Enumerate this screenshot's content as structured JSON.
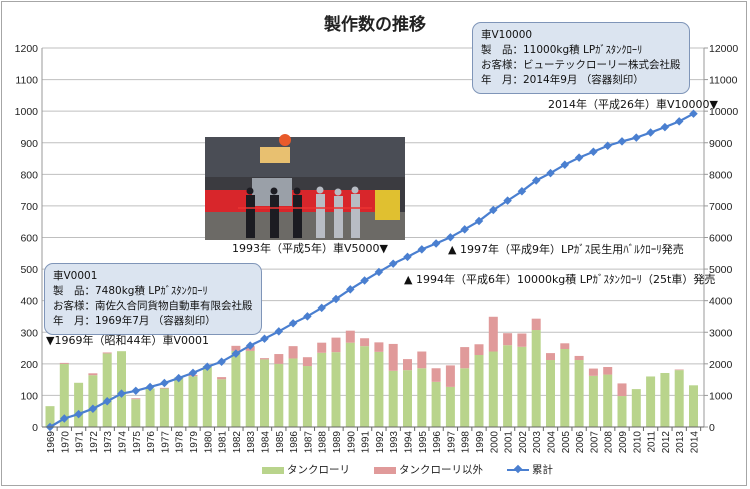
{
  "chart_data": {
    "type": "bar",
    "title": "製作数の推移",
    "categories": [
      "1969",
      "1970",
      "1971",
      "1972",
      "1973",
      "1974",
      "1975",
      "1976",
      "1977",
      "1978",
      "1979",
      "1980",
      "1981",
      "1982",
      "1983",
      "1984",
      "1985",
      "1986",
      "1987",
      "1988",
      "1989",
      "1990",
      "1991",
      "1992",
      "1993",
      "1994",
      "1995",
      "1996",
      "1997",
      "1998",
      "1999",
      "2000",
      "2001",
      "2002",
      "2003",
      "2004",
      "2005",
      "2006",
      "2007",
      "2008",
      "2009",
      "2010",
      "2011",
      "2012",
      "2013",
      "2014"
    ],
    "series": [
      {
        "name": "タンクローリ",
        "type": "stacked-bar",
        "axis": "left",
        "color": "#b9d48c",
        "values": [
          66,
          200,
          140,
          164,
          233,
          240,
          88,
          122,
          122,
          157,
          161,
          193,
          151,
          241,
          241,
          214,
          200,
          217,
          193,
          235,
          237,
          267,
          256,
          238,
          178,
          180,
          186,
          143,
          127,
          186,
          228,
          239,
          259,
          254,
          307,
          212,
          247,
          212,
          162,
          166,
          98,
          120,
          160,
          171,
          180,
          132
        ]
      },
      {
        "name": "タンクローリ以外",
        "type": "stacked-bar",
        "axis": "left",
        "color": "#e09a9a",
        "values": [
          0,
          3,
          0,
          6,
          3,
          0,
          3,
          0,
          2,
          0,
          4,
          0,
          7,
          16,
          15,
          4,
          31,
          39,
          28,
          32,
          46,
          38,
          25,
          30,
          85,
          35,
          53,
          43,
          68,
          67,
          34,
          110,
          38,
          42,
          36,
          22,
          18,
          13,
          23,
          24,
          40,
          0,
          0,
          0,
          2,
          0
        ]
      },
      {
        "name": "累計",
        "type": "line",
        "axis": "right",
        "color": "#4a7fd0",
        "values": [
          66,
          269,
          409,
          579,
          815,
          1055,
          1146,
          1268,
          1392,
          1549,
          1714,
          1907,
          2065,
          2322,
          2578,
          2796,
          3027,
          3283,
          3504,
          3771,
          4054,
          4359,
          4640,
          4908,
          5171,
          5386,
          5625,
          5811,
          6006,
          6259,
          6521,
          6870,
          7167,
          7463,
          7806,
          8040,
          8305,
          8530,
          8715,
          8905,
          9043,
          9163,
          9323,
          9494,
          9676,
          9920
        ]
      }
    ],
    "yleft": {
      "range": [
        0,
        1200
      ],
      "ticks": [
        "0",
        "100",
        "200",
        "300",
        "400",
        "500",
        "600",
        "700",
        "800",
        "900",
        "1000",
        "1100",
        "1200"
      ]
    },
    "yright": {
      "range": [
        0,
        12000
      ],
      "ticks": [
        "0",
        "1000",
        "2000",
        "3000",
        "4000",
        "5000",
        "6000",
        "7000",
        "8000",
        "9000",
        "10000",
        "11000",
        "12000"
      ]
    },
    "grid": true,
    "legend_position": "bottom"
  },
  "callouts": {
    "first": {
      "lines": [
        "車V0001",
        "製　品：7480kg積 LPｶﾞｽﾀﾝｸﾛｰﾘ",
        "お客様：南佐久合同貨物自動車有限会社殿",
        "年　月：1969年7月 （容器刻印）"
      ]
    },
    "latest": {
      "lines": [
        "車V10000",
        "製　品：11000kg積 LPｶﾞｽﾀﾝｸﾛｰﾘ",
        "お客様：ビューテックローリー株式会社殿",
        "年　月：2014年9月 （容器刻印）"
      ]
    }
  },
  "annotations": {
    "v0001": "▼1969年（昭和44年）車V0001",
    "v5000": "1993年（平成5年）車V5000▼",
    "v10000": "2014年（平成26年）車V10000▼",
    "bulk1997": "▲ 1997年（平成9年）LPｶﾞｽ民生用ﾊﾞﾙｸﾛｰﾘ発売",
    "tank1994": "▲ 1994年（平成6年）10000kg積 LPｶﾞｽﾀﾝｸﾛｰﾘ（25t車）発売"
  }
}
